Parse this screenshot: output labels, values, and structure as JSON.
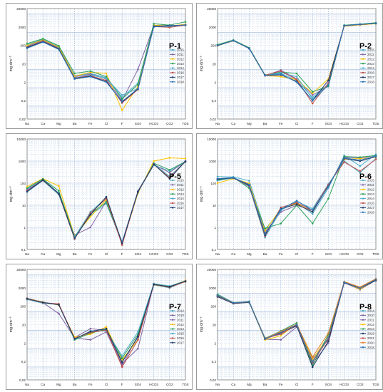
{
  "ylabel": "mg·dm⁻³",
  "ticks": [
    "20000",
    "2000",
    "200",
    "20",
    "2",
    "0,2",
    "0,02"
  ],
  "ticks_p5": [
    "10000",
    "1000",
    "100",
    "10",
    "1",
    "0,1"
  ],
  "categories": [
    "Na",
    "Ca",
    "Mg",
    "Ba",
    "Fe",
    "Cl",
    "F",
    "SO4",
    "HCO3",
    "CO2",
    "TDS"
  ],
  "colors": {
    "2014": "#4bacc6",
    "2015": "#4bacc6",
    "2011": "#8064a2",
    "2010": "#8064a2",
    "2012": "#ffc000",
    "2013": "#2ca05a",
    "2021": "#c0504d",
    "2016": "#c0504d",
    "2017": "#1f3864",
    "2018": "#2e75b6",
    "2019": "#17375e",
    "2020": "#e67e22"
  },
  "chart_data": [
    {
      "name": "P-1",
      "type": "line",
      "ylim": [
        0.02,
        20000
      ],
      "legend": [
        "2015",
        "2011",
        "2012",
        "2013",
        "2014",
        "2016",
        "2017",
        "2018"
      ],
      "series": [
        {
          "name": "2015",
          "values": [
            220,
            430,
            170,
            4.5,
            6,
            3.5,
            0.3,
            1.8,
            2400,
            2100,
            2700
          ]
        },
        {
          "name": "2011",
          "values": [
            180,
            380,
            150,
            4,
            5.5,
            3,
            0.2,
            10,
            2300,
            2200,
            2600
          ]
        },
        {
          "name": "2012",
          "values": [
            200,
            400,
            160,
            4.2,
            7,
            6,
            0.06,
            1.2,
            2500,
            2300,
            2800
          ]
        },
        {
          "name": "2013",
          "values": [
            250,
            460,
            190,
            6,
            8,
            4,
            0.25,
            1.5,
            3000,
            2500,
            3800
          ]
        },
        {
          "name": "2014",
          "values": [
            170,
            350,
            140,
            3.5,
            5,
            3.2,
            0.4,
            0.9,
            2200,
            2000,
            2600
          ]
        },
        {
          "name": "2016",
          "values": [
            160,
            340,
            135,
            3.3,
            4.5,
            2.5,
            0.15,
            0.8,
            2100,
            1900,
            2500
          ]
        },
        {
          "name": "2017",
          "values": [
            150,
            320,
            130,
            3.1,
            4.2,
            2.2,
            0.17,
            0.85,
            2200,
            2400,
            2500
          ]
        },
        {
          "name": "2018",
          "values": [
            140,
            300,
            120,
            3,
            4,
            2,
            0.18,
            0.9,
            2000,
            2300,
            2600
          ]
        }
      ]
    },
    {
      "name": "P-2",
      "type": "line",
      "ylim": [
        0.02,
        20000
      ],
      "legend": [
        "2015",
        "2011",
        "2012",
        "2013",
        "2014",
        "2016",
        "2017",
        "2018"
      ],
      "series": [
        {
          "name": "2015",
          "values": [
            210,
            380,
            140,
            4.8,
            6,
            2.5,
            0.3,
            1.5,
            2400,
            2800,
            3200
          ]
        },
        {
          "name": "2011",
          "values": [
            200,
            370,
            135,
            4.5,
            9,
            3,
            0.4,
            1.2,
            2300,
            2700,
            3000
          ]
        },
        {
          "name": "2012",
          "values": [
            190,
            360,
            140,
            4.6,
            4,
            2.8,
            0.5,
            3,
            2200,
            2600,
            3000
          ]
        },
        {
          "name": "2013",
          "values": [
            220,
            390,
            150,
            5,
            7,
            6,
            0.6,
            1.2,
            2500,
            2900,
            3400
          ]
        },
        {
          "name": "2014",
          "values": [
            200,
            370,
            140,
            4.7,
            6.5,
            4,
            0.25,
            1.5,
            2400,
            2800,
            3200
          ]
        },
        {
          "name": "2016",
          "values": [
            200,
            365,
            138,
            4.8,
            8,
            2.8,
            0.14,
            1.8,
            2300,
            2700,
            3100
          ]
        },
        {
          "name": "2017",
          "values": [
            195,
            360,
            135,
            4.6,
            5,
            2.2,
            0.2,
            2.5,
            2350,
            2750,
            3100
          ]
        },
        {
          "name": "2018",
          "values": [
            200,
            370,
            140,
            4.7,
            5.5,
            2,
            0.2,
            1.4,
            2400,
            2800,
            3200
          ]
        }
      ]
    },
    {
      "name": "P-5",
      "type": "line",
      "ylim": [
        0.1,
        10000
      ],
      "legend": [
        "2015",
        "2011",
        "2012",
        "2013",
        "2014",
        "2016",
        "2017"
      ],
      "series": [
        {
          "name": "2015",
          "values": [
            55,
            150,
            35,
            0.35,
            3.5,
            12,
            0.2,
            40,
            650,
            350,
            900
          ]
        },
        {
          "name": "2011",
          "values": [
            50,
            140,
            32,
            0.45,
            1,
            15,
            0.22,
            45,
            700,
            300,
            1000
          ]
        },
        {
          "name": "2012",
          "values": [
            70,
            160,
            75,
            0.4,
            3,
            18,
            0.18,
            35,
            1000,
            1400,
            1300
          ]
        },
        {
          "name": "2013",
          "values": [
            60,
            155,
            45,
            0.38,
            4,
            14,
            0.2,
            38,
            800,
            400,
            950
          ]
        },
        {
          "name": "2014",
          "values": [
            40,
            130,
            30,
            0.36,
            5,
            22,
            0.21,
            42,
            750,
            200,
            1000
          ]
        },
        {
          "name": "2016",
          "values": [
            45,
            135,
            33,
            0.3,
            4.5,
            20,
            0.16,
            40,
            700,
            180,
            950
          ]
        },
        {
          "name": "2017",
          "values": [
            42,
            140,
            34,
            0.32,
            3.8,
            24,
            0.19,
            41,
            720,
            160,
            980
          ]
        }
      ]
    },
    {
      "name": "P-6",
      "type": "line",
      "ylim": [
        0.1,
        10000
      ],
      "legend": [
        "2015",
        "2011",
        "2012",
        "2013",
        "2014",
        "2016",
        "2017",
        "2018"
      ],
      "series": [
        {
          "name": "2015",
          "values": [
            200,
            190,
            130,
            0.8,
            6,
            14,
            4,
            60,
            1800,
            600,
            2000
          ]
        },
        {
          "name": "2011",
          "values": [
            150,
            170,
            90,
            0.6,
            5,
            10,
            6,
            70,
            1500,
            1400,
            1800
          ]
        },
        {
          "name": "2012",
          "values": [
            100,
            160,
            100,
            0.7,
            7,
            12,
            5,
            80,
            1200,
            1300,
            1500
          ]
        },
        {
          "name": "2013",
          "values": [
            140,
            180,
            60,
            0.9,
            1.5,
            10,
            1.5,
            20,
            1600,
            1500,
            1800
          ]
        },
        {
          "name": "2014",
          "values": [
            130,
            170,
            70,
            0.35,
            6,
            15,
            7,
            90,
            1000,
            300,
            1300
          ]
        },
        {
          "name": "2016",
          "values": [
            160,
            175,
            75,
            0.4,
            8,
            13,
            6,
            85,
            900,
            350,
            1200
          ]
        },
        {
          "name": "2017",
          "values": [
            150,
            175,
            80,
            0.45,
            7,
            11,
            5,
            75,
            1300,
            1000,
            1600
          ]
        },
        {
          "name": "2018",
          "values": [
            160,
            180,
            85,
            0.5,
            6.5,
            16,
            6,
            70,
            1400,
            1100,
            1700
          ]
        }
      ]
    },
    {
      "name": "P-7",
      "type": "line",
      "ylim": [
        0.02,
        20000
      ],
      "legend": [
        "2014",
        "2010",
        "2011",
        "2012",
        "2013",
        "2015",
        "2016",
        "2017"
      ],
      "series": [
        {
          "name": "2014",
          "values": [
            500,
            320,
            250,
            3.5,
            8,
            12,
            0.2,
            4,
            3000,
            2200,
            4500
          ]
        },
        {
          "name": "2010",
          "values": [
            550,
            340,
            240,
            4,
            12,
            10,
            0.15,
            1,
            3200,
            2300,
            4800
          ]
        },
        {
          "name": "2011",
          "values": [
            480,
            310,
            80,
            3.8,
            3,
            8,
            0.12,
            5,
            3100,
            2000,
            4600
          ]
        },
        {
          "name": "2012",
          "values": [
            520,
            330,
            230,
            4.2,
            6,
            15,
            0.25,
            3,
            3300,
            2400,
            5000
          ]
        },
        {
          "name": "2013",
          "values": [
            490,
            300,
            260,
            3,
            7,
            11,
            0.3,
            6,
            2900,
            2100,
            4400
          ]
        },
        {
          "name": "2015",
          "values": [
            470,
            290,
            250,
            3.2,
            9,
            9,
            0.4,
            8,
            3400,
            2500,
            4700
          ]
        },
        {
          "name": "2016",
          "values": [
            500,
            310,
            270,
            3.6,
            7.5,
            10,
            0.1,
            3,
            3000,
            2200,
            4300
          ]
        },
        {
          "name": "2017",
          "values": [
            510,
            320,
            240,
            3.4,
            8.5,
            12,
            0.18,
            4.5,
            3100,
            2300,
            4600
          ]
        }
      ]
    },
    {
      "name": "P-8",
      "type": "line",
      "ylim": [
        0.02,
        20000
      ],
      "legend": [
        "2014",
        "2010",
        "2011",
        "2012",
        "2013",
        "2019",
        "2021",
        "2020",
        "2018"
      ],
      "series": [
        {
          "name": "2014",
          "values": [
            900,
            320,
            370,
            3.5,
            8,
            20,
            0.2,
            4,
            4200,
            2000,
            6000
          ]
        },
        {
          "name": "2010",
          "values": [
            800,
            300,
            350,
            3.8,
            6,
            18,
            0.15,
            2,
            4000,
            1800,
            5500
          ]
        },
        {
          "name": "2011",
          "values": [
            700,
            280,
            330,
            3.2,
            3,
            15,
            0.3,
            3,
            3800,
            1600,
            5200
          ]
        },
        {
          "name": "2012",
          "values": [
            750,
            290,
            340,
            3,
            5,
            22,
            0.25,
            5,
            3900,
            1700,
            5400
          ]
        },
        {
          "name": "2013",
          "values": [
            850,
            310,
            360,
            3.6,
            9,
            25,
            0.12,
            6,
            4100,
            2100,
            5800
          ]
        },
        {
          "name": "2019",
          "values": [
            650,
            280,
            320,
            3.3,
            7,
            17,
            0.1,
            2.5,
            3700,
            1900,
            5000
          ]
        },
        {
          "name": "2021",
          "values": [
            720,
            300,
            340,
            3.4,
            6.5,
            19,
            0.18,
            3.5,
            4000,
            2000,
            5600
          ]
        },
        {
          "name": "2020",
          "values": [
            780,
            310,
            350,
            3.5,
            8.5,
            21,
            0.35,
            7,
            4300,
            2200,
            6200
          ]
        },
        {
          "name": "2018",
          "values": [
            760,
            305,
            345,
            3.4,
            7.5,
            20,
            0.2,
            4,
            4000,
            1900,
            5700
          ]
        }
      ]
    }
  ]
}
